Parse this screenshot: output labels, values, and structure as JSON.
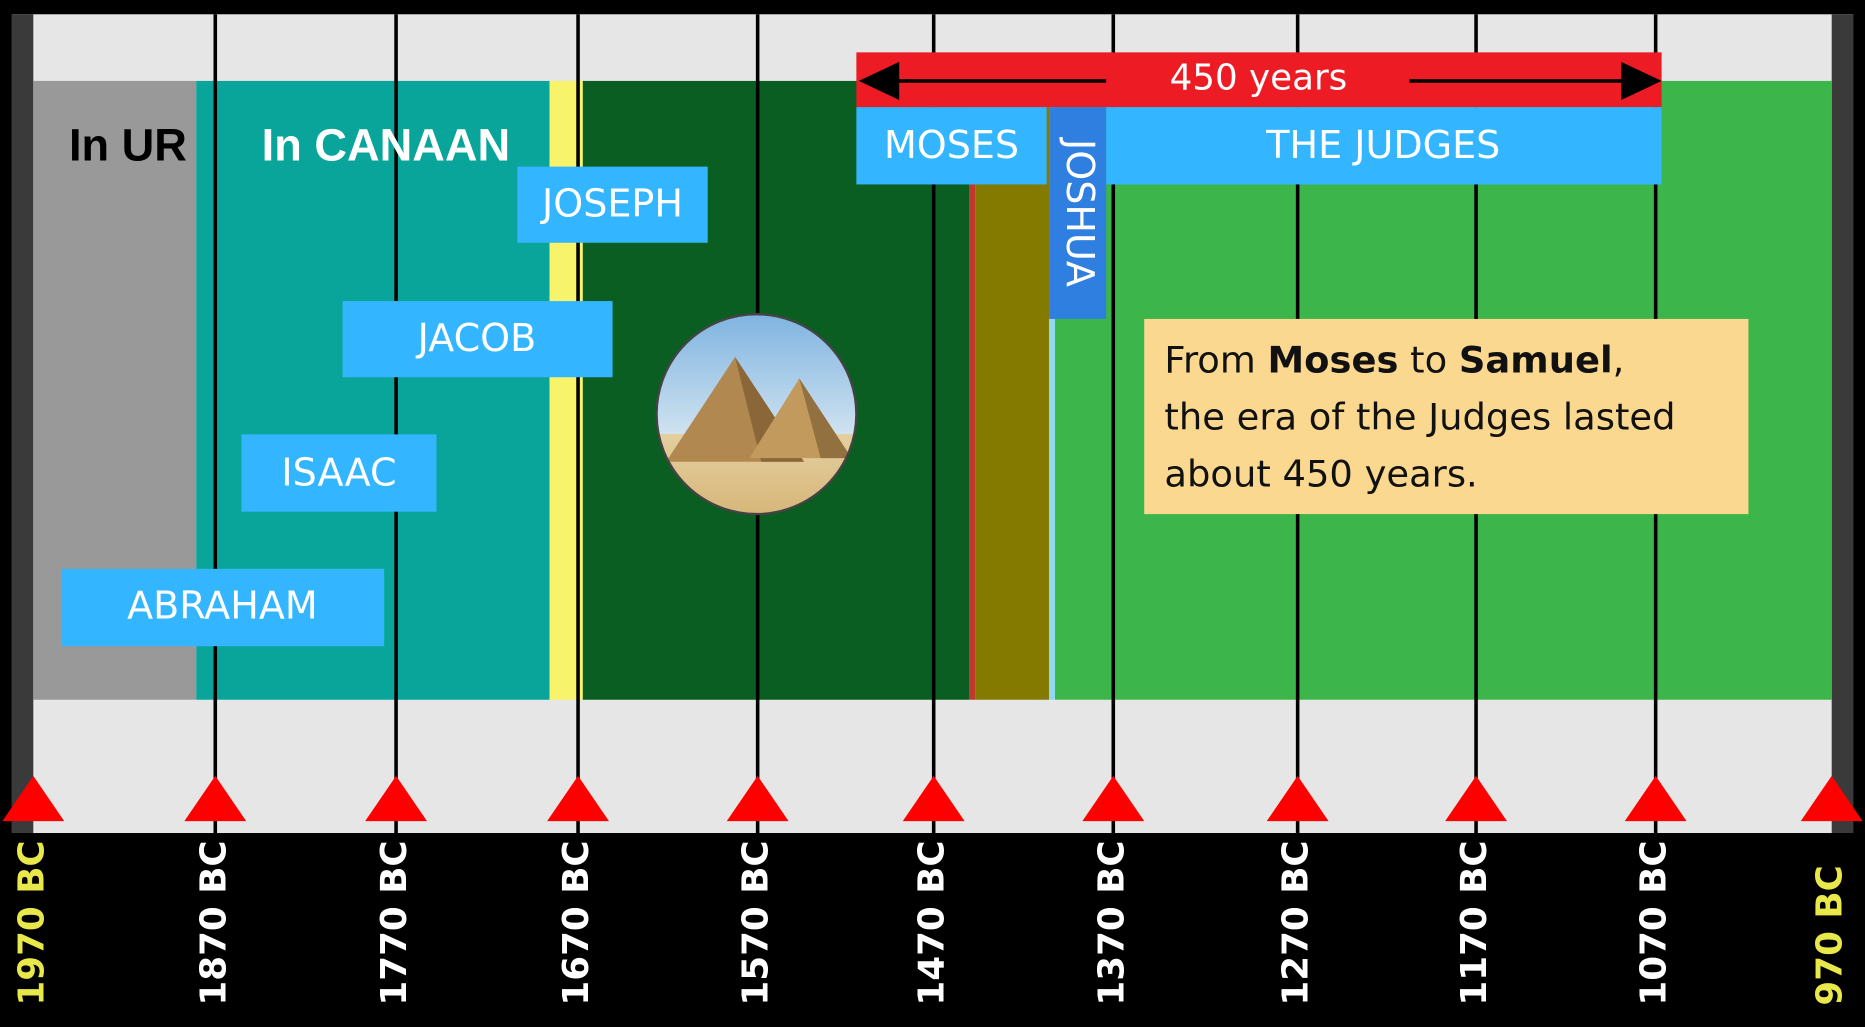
{
  "regions": {
    "ur": "In UR",
    "canaan": "In CANAAN"
  },
  "people": {
    "abraham": "ABRAHAM",
    "isaac": "ISAAC",
    "jacob": "JACOB",
    "joseph": "JOSEPH",
    "moses": "MOSES",
    "joshua": "JOSHUA",
    "judges": "THE JUDGES"
  },
  "span": "450 years",
  "note": {
    "line1": [
      "From ",
      "Moses",
      " to ",
      "Samuel",
      ","
    ],
    "line2": "the era of the Judges lasted",
    "line3": "about 450 years."
  },
  "axis_labels": [
    "1970 BC",
    "1870 BC",
    "1770 BC",
    "1670 BC",
    "1570 BC",
    "1470 BC",
    "1370 BC",
    "1270 BC",
    "1170 BC",
    "1070 BC",
    "970 BC"
  ]
}
